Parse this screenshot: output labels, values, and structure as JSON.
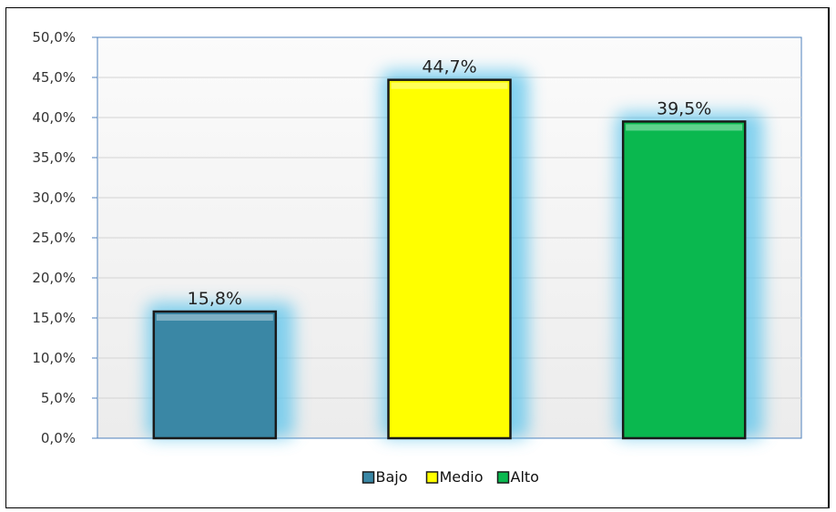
{
  "chart_data": {
    "type": "bar",
    "title": "",
    "xlabel": "",
    "ylabel": "",
    "categories": [
      "Bajo",
      "Medio",
      "Alto"
    ],
    "values": [
      15.8,
      44.7,
      39.5
    ],
    "data_labels": [
      "15,8%",
      "44,7%",
      "39,5%"
    ],
    "colors": [
      "#3a87a5",
      "#ffff00",
      "#0ab84f"
    ],
    "ylim": [
      0,
      50
    ],
    "yticks": [
      0,
      5,
      10,
      15,
      20,
      25,
      30,
      35,
      40,
      45,
      50
    ],
    "ytick_labels": [
      "0,0%",
      "5,0%",
      "10,0%",
      "15,0%",
      "20,0%",
      "25,0%",
      "30,0%",
      "35,0%",
      "40,0%",
      "45,0%",
      "50,0%"
    ],
    "grid": true,
    "legend": {
      "position": "bottom",
      "entries": [
        "Bajo",
        "Medio",
        "Alto"
      ]
    }
  }
}
